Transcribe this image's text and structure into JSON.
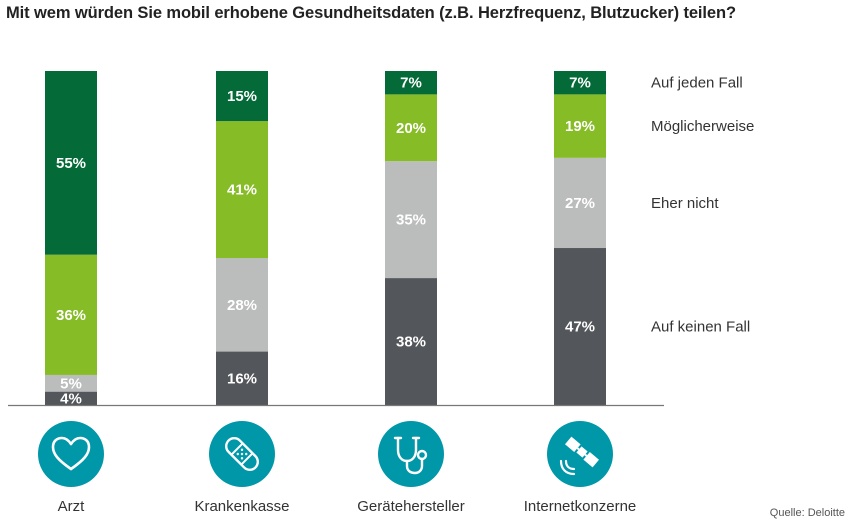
{
  "title": "Mit wem würden Sie mobil erhobene Gesundheitsdaten (z.B. Herzfrequenz, Blutzucker) teilen?",
  "source": "Quelle: Deloitte",
  "chart_data": {
    "type": "bar",
    "stacked": true,
    "unit": "%",
    "categories": [
      "Arzt",
      "Krankenkasse",
      "Gerätehersteller",
      "Internetkonzerne"
    ],
    "category_icons": [
      "heart-icon",
      "bandage-icon",
      "stethoscope-icon",
      "satellite-icon"
    ],
    "series": [
      {
        "name": "Auf keinen Fall",
        "color": "#53565a",
        "values": [
          4,
          16,
          38,
          47
        ]
      },
      {
        "name": "Eher nicht",
        "color": "#bbbcbc",
        "values": [
          5,
          28,
          35,
          27
        ]
      },
      {
        "name": "Möglicherweise",
        "color": "#86bc25",
        "values": [
          36,
          41,
          20,
          19
        ]
      },
      {
        "name": "Auf jeden Fall",
        "color": "#046a38",
        "values": [
          55,
          15,
          7,
          7
        ]
      }
    ],
    "ylim": [
      0,
      100
    ],
    "grid": false,
    "legend_position": "right",
    "icon_color": "#0097a9"
  }
}
